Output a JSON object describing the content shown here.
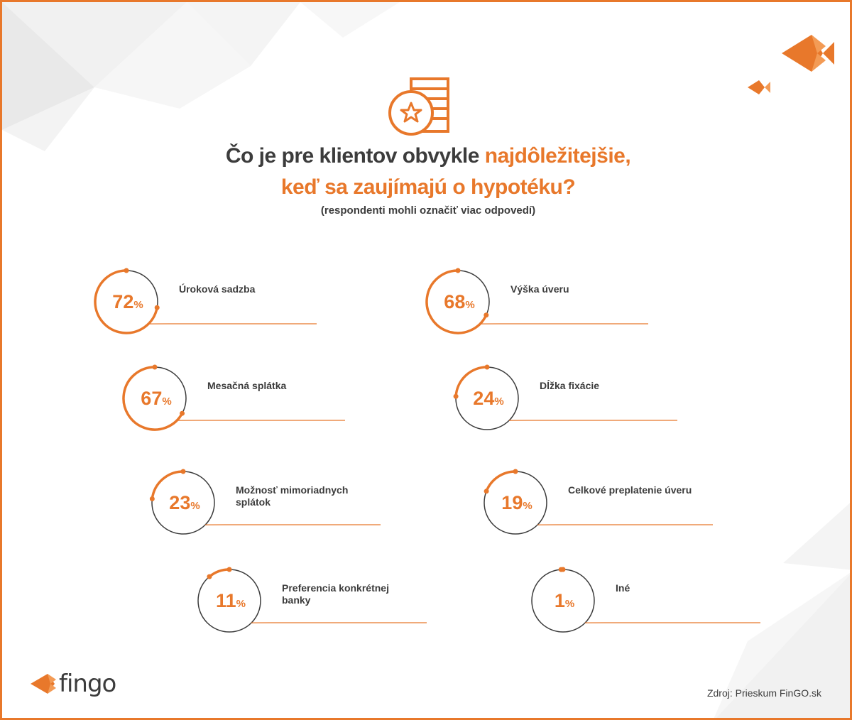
{
  "header": {
    "title_line1_plain": "Čo je pre klientov obvykle ",
    "title_line1_accent": "najdôležitejšie,",
    "title_line2_accent": "keď sa zaujímajú o hypotéku?",
    "subtitle": "(respondenti mohli označiť viac odpovedí)"
  },
  "colors": {
    "accent": "#e8782b",
    "ring": "#3c3c3c",
    "text": "#3c3c3c"
  },
  "icons": {
    "header_icon": "coin-stack-star-icon",
    "logo_icon": "fish-icon",
    "decor_icon": "fish-icon"
  },
  "chart_data": {
    "type": "donut-progress",
    "unit": "%",
    "categories": [
      "Úroková sadzba",
      "Výška úveru",
      "Mesačná splátka",
      "Dĺžka fixácie",
      "Možnosť mimoriadnych splátok",
      "Celkové preplatenie úveru",
      "Preferencia konkrétnej banky",
      "Iné"
    ],
    "values": [
      72,
      68,
      67,
      24,
      23,
      19,
      11,
      1
    ]
  },
  "labels": [
    [
      "Úroková sadzba"
    ],
    [
      "Výška úveru"
    ],
    [
      "Mesačná splátka"
    ],
    [
      "Dĺžka fixácie"
    ],
    [
      "Možnosť mimoriadnych",
      "splátok"
    ],
    [
      "Celkové preplatenie úveru"
    ],
    [
      "Preferencia konkrétnej",
      "banky"
    ],
    [
      "Iné"
    ]
  ],
  "footer": {
    "logo_text": "fingo",
    "source": "Zdroj: Prieskum FinGO.sk"
  }
}
